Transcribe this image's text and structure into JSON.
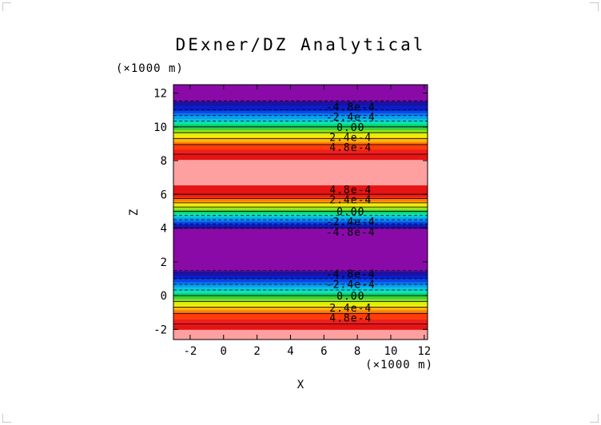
{
  "chart_data": {
    "type": "heatmap",
    "title": "DExner/DZ Analytical",
    "xlabel": "X",
    "ylabel": "Z",
    "x_unit": "(×1000 m)",
    "y_unit": "(×1000 m)",
    "xlim": [
      -3,
      12.2
    ],
    "ylim": [
      -2.6,
      12.5
    ],
    "x_ticks": [
      -2,
      0,
      2,
      4,
      6,
      8,
      10,
      12
    ],
    "y_ticks": [
      -2,
      0,
      2,
      4,
      6,
      8,
      10,
      12
    ],
    "field": {
      "description_of_variation": "varies with Z only; constant along X",
      "z": [
        -2.6,
        -2.0,
        -1.0,
        0.0,
        1.0,
        2.0,
        3.0,
        4.0,
        5.0,
        6.0,
        7.0,
        7.5,
        8.0,
        9.0,
        10.0,
        11.0,
        12.0,
        12.5
      ],
      "value": [
        0.00059,
        0.00054,
        0.00035,
        0.0,
        -0.00036,
        -0.0006,
        -0.00059,
        -0.00048,
        0.0,
        0.00048,
        0.00059,
        0.0006,
        0.00056,
        0.00035,
        0.0,
        -0.00036,
        -0.00058,
        -0.0006
      ]
    },
    "color_levels": [
      -0.00054,
      -0.00048,
      -0.00042,
      -0.00036,
      -0.0003,
      -0.00024,
      -0.00018,
      -0.00012,
      -6e-05,
      0.0,
      6e-05,
      0.00012,
      0.00018,
      0.00024,
      0.0003,
      0.00036,
      0.00042,
      0.00048,
      0.00054
    ],
    "colors": [
      "#8a0aa8",
      "#1e10a0",
      "#0a1ec8",
      "#0a46e6",
      "#0a78f0",
      "#0aa0f0",
      "#0ac8dc",
      "#0ae6b4",
      "#0ad270",
      "#3cd23c",
      "#96e61e",
      "#dcf00a",
      "#ffe60a",
      "#ffb40a",
      "#ff7d0a",
      "#ff3c0a",
      "#f01e1e",
      "#e61414",
      "#ffa0a0"
    ],
    "contour_levels": [
      -0.00048,
      -0.00036,
      -0.00024,
      -0.00012,
      0.0,
      0.00012,
      0.00024,
      0.00036,
      0.00048
    ],
    "contour_labels": [
      {
        "z": -1.3,
        "text": "4.8e-4"
      },
      {
        "z": -0.7,
        "text": "2.4e-4"
      },
      {
        "z": 0.0,
        "text": "0.00"
      },
      {
        "z": 0.7,
        "text": "-2.4e-4"
      },
      {
        "z": 1.3,
        "text": "-4.8e-4"
      },
      {
        "z": 3.8,
        "text": "-4.8e-4"
      },
      {
        "z": 4.4,
        "text": "-2.4e-4"
      },
      {
        "z": 5.0,
        "text": "0.00"
      },
      {
        "z": 5.7,
        "text": "2.4e-4"
      },
      {
        "z": 6.3,
        "text": "4.8e-4"
      },
      {
        "z": 8.8,
        "text": "4.8e-4"
      },
      {
        "z": 9.4,
        "text": "2.4e-4"
      },
      {
        "z": 10.0,
        "text": "0.00"
      },
      {
        "z": 10.6,
        "text": "-2.4e-4"
      },
      {
        "z": 11.2,
        "text": "-4.8e-4"
      }
    ],
    "contour_style": {
      "positive": "solid",
      "negative": "dashed"
    },
    "legend": "none",
    "grid": false
  }
}
